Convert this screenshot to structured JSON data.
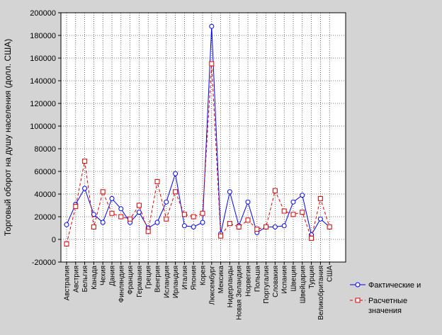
{
  "chart_data": {
    "type": "line",
    "ylabel": "Торговый оборот на душу населения (долл. США)",
    "xlabel": "",
    "ylim": [
      -20000,
      200000
    ],
    "yticks": [
      -20000,
      0,
      20000,
      40000,
      60000,
      80000,
      100000,
      120000,
      140000,
      160000,
      180000,
      200000
    ],
    "grid": true,
    "legend_position": "bottom-right",
    "categories": [
      "Австралия",
      "Австрия",
      "Бельгия",
      "Канада",
      "Чехия",
      "Дания",
      "Финляндия",
      "Франция",
      "Германия",
      "Греция",
      "Венгрия",
      "Исландия",
      "Ирландия",
      "Италия",
      "Япония",
      "Корея",
      "Люксембург",
      "Мексика",
      "Нидерланды",
      "Новая Зеландия",
      "Норвегия",
      "Польша",
      "Португалия",
      "Словакия",
      "Испания",
      "Швеция",
      "Швейцария",
      "Турция",
      "Великобритания",
      "США"
    ],
    "series": [
      {
        "name": "Фактические и",
        "color": "#0000ff",
        "style": "solid",
        "marker": "circle",
        "values": [
          13000,
          31000,
          45000,
          22000,
          15000,
          36000,
          27000,
          15000,
          24000,
          10000,
          15000,
          33000,
          58000,
          12000,
          11000,
          15000,
          188000,
          5000,
          42000,
          12000,
          33000,
          6000,
          11000,
          11000,
          12000,
          33000,
          39000,
          4000,
          18000,
          11000
        ]
      },
      {
        "name": "Расчетные значения",
        "color": "#e00000",
        "style": "dashed",
        "marker": "square",
        "values": [
          -4000,
          29000,
          69000,
          11000,
          42000,
          23000,
          20000,
          18000,
          30000,
          7000,
          51000,
          18000,
          42000,
          22000,
          20000,
          23000,
          155000,
          3000,
          14000,
          11000,
          17000,
          9000,
          11000,
          43000,
          25000,
          22000,
          24000,
          1000,
          36000,
          11000
        ]
      }
    ]
  }
}
